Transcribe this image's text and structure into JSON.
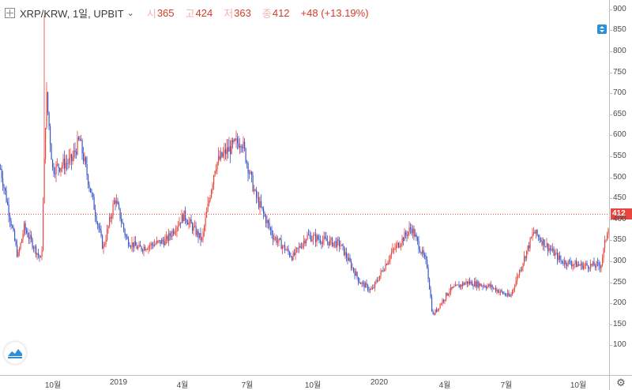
{
  "legend": {
    "symbol": "XRP/KRW, 1일, UPBIT",
    "open_label": "시",
    "open": "365",
    "high_label": "고",
    "high": "424",
    "low_label": "저",
    "low": "363",
    "close_label": "종",
    "close": "412",
    "change": "+48 (+13.19%)"
  },
  "price_tag": "412",
  "colors": {
    "up": "#e8453c",
    "down": "#3a56c8",
    "price_line": "#e8453c"
  },
  "icons": [
    "add-box-icon",
    "chevron-down-icon",
    "scroll-to-latest-icon",
    "tradingview-logo-icon",
    "gear-icon"
  ],
  "chart_data": {
    "type": "candlestick",
    "y_axis_ticks": [
      "100",
      "150",
      "200",
      "250",
      "300",
      "350",
      "400",
      "450",
      "500",
      "550",
      "600",
      "650",
      "700",
      "750",
      "800",
      "850",
      "900",
      "950"
    ],
    "x_axis_ticks": [
      "10월",
      "2019",
      "4월",
      "7월",
      "10월",
      "2020",
      "4월",
      "7월",
      "10월"
    ],
    "ylim": [
      100,
      960
    ],
    "current_price": 412,
    "close_path": [
      [
        "2018-07",
        520
      ],
      [
        "2018-08",
        310
      ],
      [
        "2018-08",
        380
      ],
      [
        "2018-09",
        300
      ],
      [
        "2018-09",
        700
      ],
      [
        "2018-10",
        520
      ],
      [
        "2018-11",
        540
      ],
      [
        "2018-11",
        590
      ],
      [
        "2018-12",
        330
      ],
      [
        "2019-01",
        450
      ],
      [
        "2019-01",
        350
      ],
      [
        "2019-02",
        330
      ],
      [
        "2019-03",
        350
      ],
      [
        "2019-04",
        410
      ],
      [
        "2019-05",
        350
      ],
      [
        "2019-05",
        530
      ],
      [
        "2019-06",
        560
      ],
      [
        "2019-06",
        590
      ],
      [
        "2019-07",
        460
      ],
      [
        "2019-08",
        360
      ],
      [
        "2019-09",
        310
      ],
      [
        "2019-10",
        360
      ],
      [
        "2019-11",
        340
      ],
      [
        "2019-12",
        250
      ],
      [
        "2020-01",
        230
      ],
      [
        "2020-02",
        320
      ],
      [
        "2020-02",
        380
      ],
      [
        "2020-03",
        290
      ],
      [
        "2020-03",
        170
      ],
      [
        "2020-04",
        230
      ],
      [
        "2020-05",
        250
      ],
      [
        "2020-06",
        240
      ],
      [
        "2020-07",
        215
      ],
      [
        "2020-08",
        370
      ],
      [
        "2020-09",
        300
      ],
      [
        "2020-10",
        290
      ],
      [
        "2020-11",
        290
      ],
      [
        "2020-11",
        412
      ]
    ]
  }
}
